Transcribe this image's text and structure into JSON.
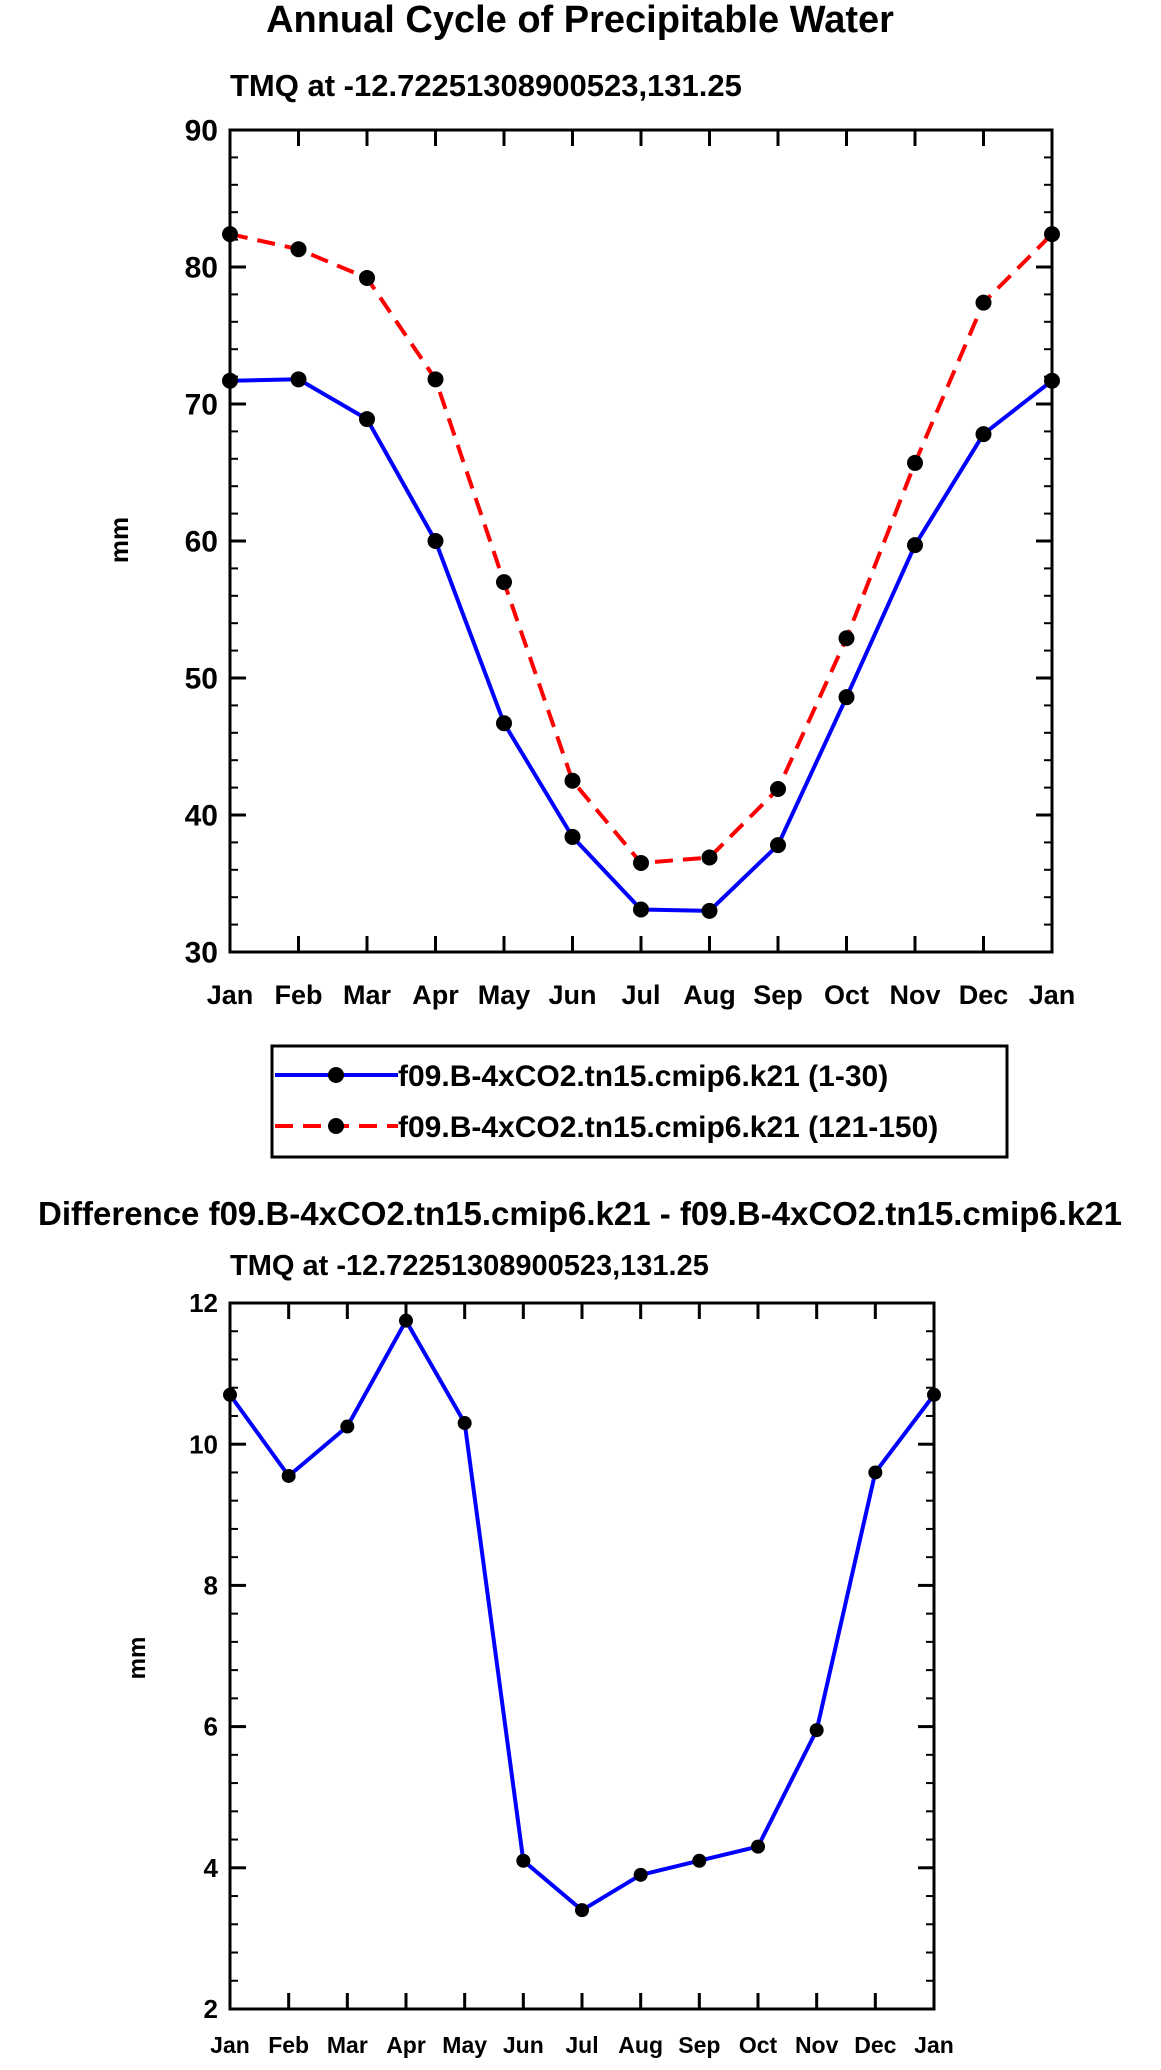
{
  "chart_data": [
    {
      "type": "line",
      "title": "Annual Cycle of Precipitable Water",
      "subtitle": "TMQ at -12.72251308900523,131.25",
      "xlabel": "",
      "ylabel": "mm",
      "categories": [
        "Jan",
        "Feb",
        "Mar",
        "Apr",
        "May",
        "Jun",
        "Jul",
        "Aug",
        "Sep",
        "Oct",
        "Nov",
        "Dec",
        "Jan"
      ],
      "ylim": [
        30,
        90
      ],
      "yticks": [
        30,
        40,
        50,
        60,
        70,
        80,
        90
      ],
      "ytick_labels": [
        "30",
        "40",
        "50",
        "60",
        "70",
        "80",
        "90"
      ],
      "grid": false,
      "legend_position": "bottom-center",
      "series": [
        {
          "name": "f09.B-4xCO2.tn15.cmip6.k21 (1-30)",
          "color": "#0000ff",
          "dash": "solid",
          "marker_color": "#000000",
          "values": [
            71.7,
            71.8,
            68.9,
            60.0,
            46.7,
            38.4,
            33.1,
            33.0,
            37.8,
            48.6,
            59.7,
            67.8,
            71.7
          ]
        },
        {
          "name": "f09.B-4xCO2.tn15.cmip6.k21 (121-150)",
          "color": "#ff0000",
          "dash": "dashed",
          "marker_color": "#000000",
          "values": [
            82.4,
            81.3,
            79.2,
            71.8,
            57.0,
            42.5,
            36.5,
            36.9,
            41.9,
            52.9,
            65.7,
            77.4,
            82.4
          ]
        }
      ]
    },
    {
      "type": "line",
      "title": "Difference f09.B-4xCO2.tn15.cmip6.k21 - f09.B-4xCO2.tn15.cmip6.k21",
      "subtitle": "TMQ at -12.72251308900523,131.25",
      "xlabel": "",
      "ylabel": "mm",
      "categories": [
        "Jan",
        "Feb",
        "Mar",
        "Apr",
        "May",
        "Jun",
        "Jul",
        "Aug",
        "Sep",
        "Oct",
        "Nov",
        "Dec",
        "Jan"
      ],
      "ylim": [
        2,
        12
      ],
      "yticks": [
        2,
        4,
        6,
        8,
        10,
        12
      ],
      "ytick_labels": [
        "2",
        "4",
        "6",
        "8",
        "10",
        "12"
      ],
      "grid": false,
      "series": [
        {
          "name": "Difference",
          "color": "#0000ff",
          "dash": "solid",
          "marker_color": "#000000",
          "values": [
            10.7,
            9.55,
            10.25,
            11.75,
            10.3,
            4.1,
            3.4,
            3.9,
            4.1,
            4.3,
            5.95,
            9.6,
            10.7
          ]
        }
      ]
    }
  ]
}
